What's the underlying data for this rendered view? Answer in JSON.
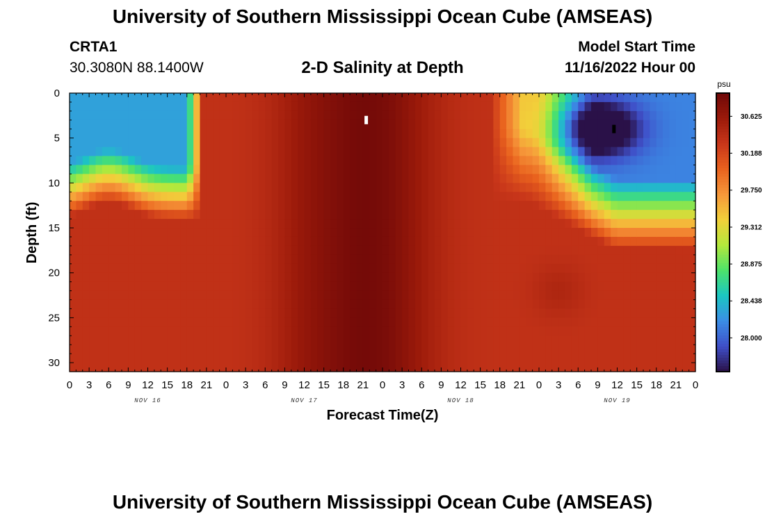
{
  "header": {
    "title": "University of Southern Mississippi Ocean Cube (AMSEAS)",
    "station": "CRTA1",
    "coords": "30.3080N  88.1400W",
    "subtitle": "2-D Salinity at Depth",
    "model_start_label": "Model Start Time",
    "model_start_value": "11/16/2022 Hour 00"
  },
  "footer": {
    "title": "University of Southern Mississippi Ocean Cube (AMSEAS)"
  },
  "chart_data": {
    "type": "heatmap",
    "title": "2-D Salinity at Depth",
    "xlabel": "Forecast Time(Z)",
    "ylabel": "Depth (ft)",
    "x_range_hours": [
      0,
      96
    ],
    "y_range_ft": [
      0,
      31
    ],
    "y_inverted": true,
    "x_tick_labels": [
      "0",
      "3",
      "6",
      "9",
      "12",
      "15",
      "18",
      "21",
      "0",
      "3",
      "6",
      "9",
      "12",
      "15",
      "18",
      "21",
      "0",
      "3",
      "6",
      "9",
      "12",
      "15",
      "18",
      "21",
      "0",
      "3",
      "6",
      "9",
      "12",
      "15",
      "18",
      "21",
      "0"
    ],
    "x_ticks_hours": [
      0,
      3,
      6,
      9,
      12,
      15,
      18,
      21,
      24,
      27,
      30,
      33,
      36,
      39,
      42,
      45,
      48,
      51,
      54,
      57,
      60,
      63,
      66,
      69,
      72,
      75,
      78,
      81,
      84,
      87,
      90,
      93,
      96
    ],
    "day_labels": [
      {
        "label": "NOV 16",
        "hour": 12
      },
      {
        "label": "NOV 17",
        "hour": 36
      },
      {
        "label": "NOV 18",
        "hour": 60
      },
      {
        "label": "NOV 19",
        "hour": 84
      }
    ],
    "y_ticks": [
      0,
      5,
      10,
      15,
      20,
      25,
      30
    ],
    "colorbar": {
      "unit": "psu",
      "min": 27.6,
      "max": 30.9,
      "tick_values": [
        30.625,
        30.188,
        29.75,
        29.312,
        28.875,
        28.438,
        28.0
      ],
      "tick_labels": [
        "30.625",
        "30.188",
        "29.750",
        "29.312",
        "28.875",
        "28.438",
        "28.000"
      ],
      "colors": [
        "#2a1148",
        "#3f4fc8",
        "#3b8ee6",
        "#1bc6c2",
        "#4de26a",
        "#b4e83c",
        "#f2d03a",
        "#f6973a",
        "#e9621e",
        "#c8361a",
        "#9b1a0a",
        "#6f0808"
      ]
    },
    "field_description": {
      "hour_step": 1,
      "depth_step_ft": 1,
      "fresh_surface_tongues": [
        {
          "hours": [
            0,
            20
          ],
          "depth_ft": [
            0,
            15
          ],
          "min_value": 28.6
        },
        {
          "hours": [
            65,
            96
          ],
          "depth_ft": [
            0,
            17
          ],
          "min_value": 28.0
        }
      ],
      "min_core": {
        "hour": 81,
        "depth_ft": 4,
        "value": 27.7
      },
      "max_core": {
        "hour": 45,
        "depth_ft": 15,
        "value": 30.85
      },
      "background_value": 30.35
    },
    "markers": [
      {
        "hour": 45.5,
        "depth_ft": 3,
        "color": "#ffffff"
      },
      {
        "hour": 83.5,
        "depth_ft": 4,
        "color": "#000000"
      }
    ]
  }
}
